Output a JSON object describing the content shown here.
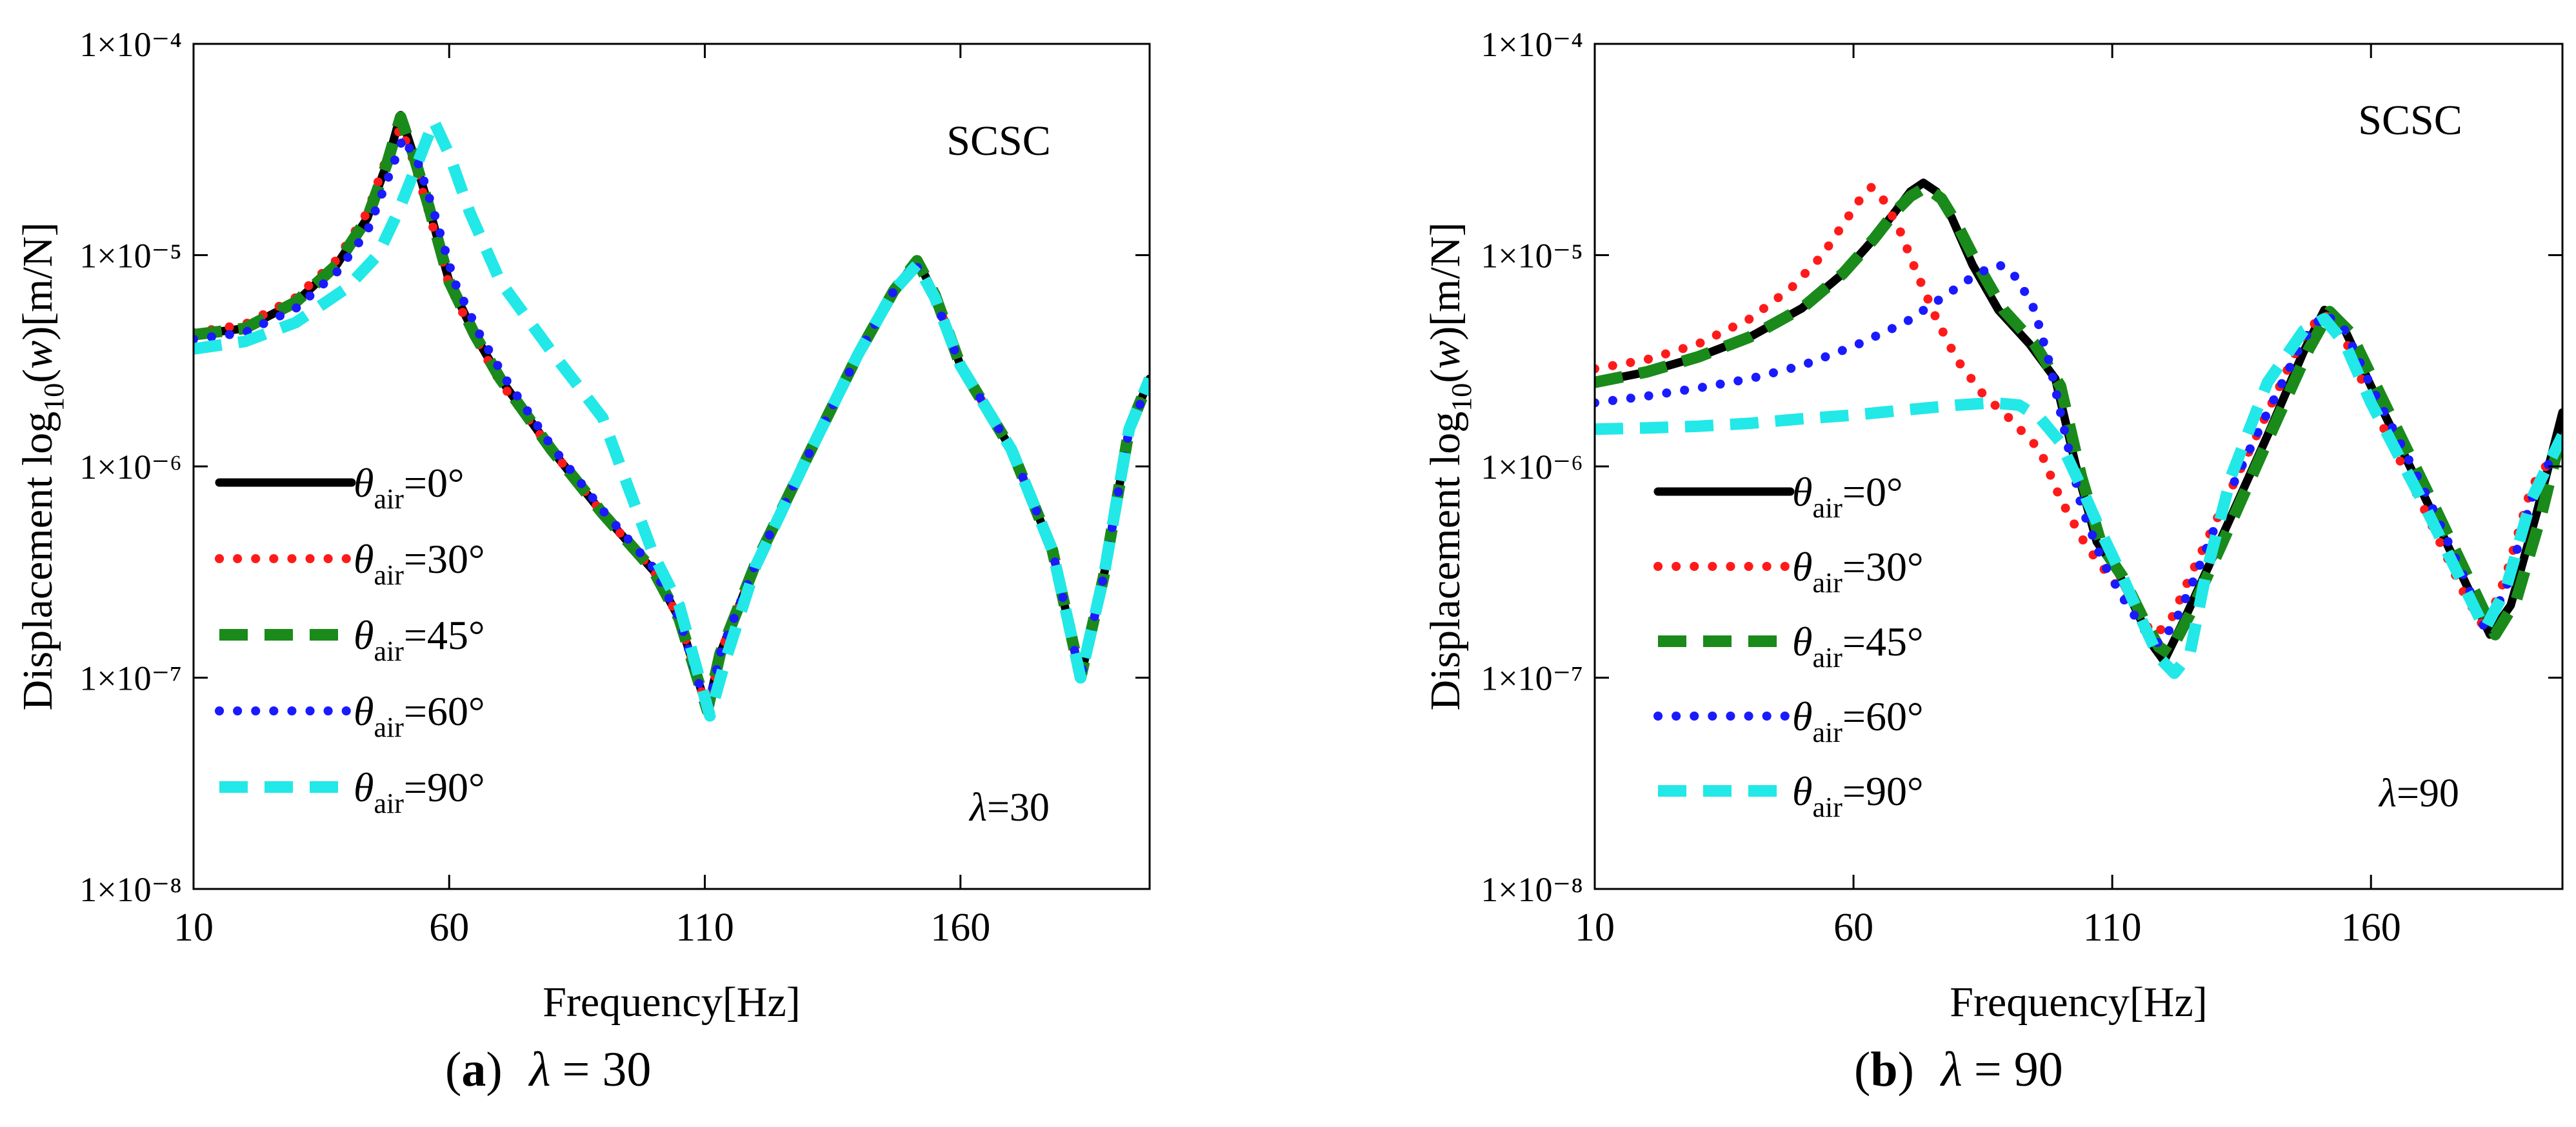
{
  "chart_data": [
    {
      "type": "line",
      "panel_label": "(a)",
      "caption_label": "a",
      "caption_symbol": "λ",
      "caption_value": "= 30",
      "title": "",
      "xlabel": "Frequency[Hz]",
      "ylabel_prefix": "Displacement log",
      "ylabel_sub": "10",
      "ylabel_var": "w",
      "ylabel_unit": "[m/N]",
      "xlim": [
        10,
        197
      ],
      "x_ticks": [
        10,
        60,
        110,
        160
      ],
      "y_scale": "log",
      "ylim": [
        1e-08,
        0.0001
      ],
      "y_ticks": [
        {
          "value": 0.0001,
          "label": "1×10⁻⁴"
        },
        {
          "value": 1e-05,
          "label": "1×10⁻⁵"
        },
        {
          "value": 1e-06,
          "label": "1×10⁻⁶"
        },
        {
          "value": 1e-07,
          "label": "1×10⁻⁷"
        },
        {
          "value": 1e-08,
          "label": "1×10⁻⁸"
        }
      ],
      "annotation_top": "SCSC",
      "annotation_symbol": "λ",
      "annotation_value": "=30",
      "legend_position": "left-bottom",
      "series": [
        {
          "name": "θair=0°",
          "symbol": "θ",
          "sub": "air",
          "value": "=0°",
          "color": "#000000",
          "style": "solid",
          "x": [
            10,
            20,
            30,
            38,
            44,
            48,
            50.5,
            53,
            56,
            60,
            65,
            70,
            80,
            90,
            100,
            105,
            108,
            110.5,
            113,
            120,
            130,
            140,
            147,
            151.5,
            155,
            160,
            170,
            178,
            183.5,
            188,
            193,
            197
          ],
          "y": [
            4.2e-06,
            4.5e-06,
            6e-06,
            9e-06,
            1.5e-05,
            2.8e-05,
            4.6e-05,
            3e-05,
            1.7e-05,
            7.5e-06,
            4.2e-06,
            2.6e-06,
            1.2e-06,
            6e-07,
            3.2e-07,
            1.9e-07,
            1.1e-07,
            7e-08,
            1.3e-07,
            3.5e-07,
            1.1e-06,
            3.4e-06,
            6.8e-06,
            9.5e-06,
            6.5e-06,
            3e-06,
            1.2e-06,
            4e-07,
            1e-07,
            3e-07,
            1.5e-06,
            2.6e-06
          ]
        },
        {
          "name": "θair=30°",
          "symbol": "θ",
          "sub": "air",
          "value": "=30°",
          "color": "#ff1a1a",
          "style": "dot",
          "x": [
            10,
            20,
            30,
            38,
            44,
            48,
            50.5,
            53,
            56,
            60,
            65,
            70,
            80,
            90,
            100,
            105,
            108,
            110.5,
            113,
            120,
            130,
            140,
            147,
            151.5,
            155,
            160,
            170,
            178,
            183.5,
            188,
            193,
            197
          ],
          "y": [
            4.3e-06,
            4.7e-06,
            6.3e-06,
            9.5e-06,
            1.6e-05,
            3e-05,
            4e-05,
            2.8e-05,
            1.6e-05,
            7.2e-06,
            4.1e-06,
            2.5e-06,
            1.2e-06,
            6e-07,
            3.2e-07,
            1.9e-07,
            1.1e-07,
            7e-08,
            1.3e-07,
            3.5e-07,
            1.1e-06,
            3.4e-06,
            6.8e-06,
            9.3e-06,
            6.4e-06,
            3e-06,
            1.2e-06,
            4e-07,
            1e-07,
            3e-07,
            1.5e-06,
            2.6e-06
          ]
        },
        {
          "name": "θair=45°",
          "symbol": "θ",
          "sub": "air",
          "value": "=45°",
          "color": "#1a8a1a",
          "style": "dash",
          "x": [
            10,
            20,
            30,
            38,
            44,
            48,
            50.5,
            53,
            56,
            60,
            65,
            70,
            80,
            90,
            100,
            105,
            108,
            110.5,
            113,
            120,
            130,
            140,
            147,
            151.5,
            155,
            160,
            170,
            178,
            183.5,
            188,
            193,
            197
          ],
          "y": [
            4.2e-06,
            4.5e-06,
            6e-06,
            9e-06,
            1.5e-05,
            2.8e-05,
            4.5e-05,
            3e-05,
            1.7e-05,
            7.5e-06,
            4.2e-06,
            2.6e-06,
            1.2e-06,
            6e-07,
            3.2e-07,
            1.9e-07,
            1.1e-07,
            7e-08,
            1.3e-07,
            3.5e-07,
            1.1e-06,
            3.4e-06,
            6.8e-06,
            9.4e-06,
            6.5e-06,
            3e-06,
            1.2e-06,
            4e-07,
            1e-07,
            3e-07,
            1.5e-06,
            2.6e-06
          ]
        },
        {
          "name": "θair=60°",
          "symbol": "θ",
          "sub": "air",
          "value": "=60°",
          "color": "#1a1aff",
          "style": "dot",
          "x": [
            10,
            20,
            30,
            38,
            44,
            48,
            51,
            54,
            57,
            61,
            66,
            71,
            80,
            90,
            100,
            105,
            108,
            110.5,
            113,
            120,
            130,
            140,
            147,
            151.5,
            155,
            160,
            170,
            178,
            183.5,
            188,
            193,
            197
          ],
          "y": [
            4e-06,
            4.3e-06,
            5.6e-06,
            8.3e-06,
            1.3e-05,
            2.3e-05,
            3.6e-05,
            2.7e-05,
            1.6e-05,
            7.5e-06,
            4.2e-06,
            2.6e-06,
            1.25e-06,
            6.2e-07,
            3.3e-07,
            1.9e-07,
            1.1e-07,
            6.9e-08,
            1.3e-07,
            3.5e-07,
            1.1e-06,
            3.4e-06,
            6.8e-06,
            8.8e-06,
            6.2e-06,
            3e-06,
            1.2e-06,
            4e-07,
            1e-07,
            3e-07,
            1.5e-06,
            2.5e-06
          ]
        },
        {
          "name": "θair=90°",
          "symbol": "θ",
          "sub": "air",
          "value": "=90°",
          "color": "#22e8e8",
          "style": "dash",
          "x": [
            10,
            20,
            30,
            40,
            46,
            50,
            54,
            57,
            60,
            64,
            70,
            80,
            90,
            95,
            100,
            105,
            108,
            111,
            114,
            120,
            130,
            140,
            147,
            151.5,
            155,
            160,
            170,
            178,
            183.5,
            188,
            193,
            197
          ],
          "y": [
            3.6e-06,
            3.9e-06,
            4.8e-06,
            7e-06,
            1e-05,
            1.6e-05,
            2.8e-05,
            4.3e-05,
            3e-05,
            1.6e-05,
            7.5e-06,
            3.5e-06,
            1.7e-06,
            8e-07,
            3.8e-07,
            2.2e-07,
            1.2e-07,
            6.6e-08,
            1.2e-07,
            3.4e-07,
            1.1e-06,
            3.4e-06,
            6.8e-06,
            9e-06,
            6.3e-06,
            3e-06,
            1.2e-06,
            4e-07,
            1e-07,
            3e-07,
            1.5e-06,
            2.6e-06
          ]
        }
      ]
    },
    {
      "type": "line",
      "panel_label": "(b)",
      "caption_label": "b",
      "caption_symbol": "λ",
      "caption_value": "= 90",
      "title": "",
      "xlabel": "Frequency[Hz]",
      "ylabel_prefix": "Displacement log",
      "ylabel_sub": "10",
      "ylabel_var": "w",
      "ylabel_unit": "[m/N]",
      "xlim": [
        10,
        197
      ],
      "x_ticks": [
        10,
        60,
        110,
        160
      ],
      "y_scale": "log",
      "ylim": [
        1e-08,
        0.0001
      ],
      "y_ticks": [
        {
          "value": 0.0001,
          "label": "1×10⁻⁴"
        },
        {
          "value": 1e-05,
          "label": "1×10⁻⁵"
        },
        {
          "value": 1e-06,
          "label": "1×10⁻⁶"
        },
        {
          "value": 1e-07,
          "label": "1×10⁻⁷"
        },
        {
          "value": 1e-08,
          "label": "1×10⁻⁸"
        }
      ],
      "annotation_top": "SCSC",
      "annotation_symbol": "λ",
      "annotation_value": "=90",
      "legend_position": "left-bottom",
      "series": [
        {
          "name": "θair=0°",
          "symbol": "θ",
          "sub": "air",
          "value": "=0°",
          "color": "#000000",
          "style": "solid",
          "x": [
            10,
            20,
            30,
            40,
            50,
            58,
            64,
            68,
            71,
            73.5,
            76,
            79,
            83,
            88,
            94,
            99,
            103,
            107,
            111,
            115,
            118,
            120,
            124,
            130,
            140,
            147,
            151,
            155,
            160,
            170,
            178,
            183,
            187,
            192,
            197
          ],
          "y": [
            2.5e-06,
            2.8e-06,
            3.3e-06,
            4.1e-06,
            5.6e-06,
            8.2e-06,
            1.2e-05,
            1.6e-05,
            2e-05,
            2.2e-05,
            2e-05,
            1.5e-05,
            9e-06,
            5.5e-06,
            3.8e-06,
            2.6e-06,
            1e-06,
            4.4e-07,
            3.2e-07,
            2e-07,
            1.4e-07,
            1.2e-07,
            1.9e-07,
            4e-07,
            1.4e-06,
            3.5e-06,
            5.5e-06,
            4.4e-06,
            2.4e-06,
            7.5e-07,
            2.9e-07,
            1.6e-07,
            2.2e-07,
            6e-07,
            1.8e-06
          ]
        },
        {
          "name": "θair=30°",
          "symbol": "θ",
          "sub": "air",
          "value": "=30°",
          "color": "#ff1a1a",
          "style": "dot",
          "x": [
            10,
            20,
            30,
            40,
            48,
            54,
            58,
            61,
            63.5,
            66,
            69,
            72,
            76,
            80,
            85,
            90,
            96,
            100,
            105,
            110,
            115,
            118,
            121,
            125,
            130,
            140,
            147,
            151,
            155,
            160,
            170,
            178,
            182,
            186,
            191,
            197
          ],
          "y": [
            2.9e-06,
            3.2e-06,
            3.8e-06,
            5e-06,
            7e-06,
            1e-05,
            1.4e-05,
            1.8e-05,
            2.1e-05,
            1.8e-05,
            1.3e-05,
            8.5e-06,
            5e-06,
            3.2e-06,
            2.2e-06,
            1.7e-06,
            1.2e-06,
            7e-07,
            4.2e-07,
            2.9e-07,
            2e-07,
            1.6e-07,
            1.8e-07,
            3e-07,
            5.5e-07,
            1.8e-06,
            4.2e-06,
            5.3e-06,
            4e-06,
            2e-06,
            6.5e-07,
            2.5e-07,
            1.7e-07,
            3e-07,
            8e-07,
            1.3e-06
          ]
        },
        {
          "name": "θair=45°",
          "symbol": "θ",
          "sub": "air",
          "value": "=45°",
          "color": "#1a8a1a",
          "style": "dash",
          "x": [
            10,
            20,
            30,
            40,
            50,
            58,
            64,
            68,
            71,
            74,
            77,
            80,
            84,
            89,
            95,
            100,
            104,
            108,
            112,
            116,
            119,
            121,
            125,
            131,
            141,
            148,
            152,
            156,
            161,
            171,
            179,
            184,
            188,
            193,
            197
          ],
          "y": [
            2.5e-06,
            2.8e-06,
            3.3e-06,
            4.1e-06,
            5.6e-06,
            8.2e-06,
            1.2e-05,
            1.6e-05,
            1.9e-05,
            2.1e-05,
            1.85e-05,
            1.4e-05,
            9e-06,
            5.5e-06,
            3.8e-06,
            2.4e-06,
            9e-07,
            4.2e-07,
            3e-07,
            1.9e-07,
            1.4e-07,
            1.3e-07,
            2e-07,
            4.2e-07,
            1.5e-06,
            3.6e-06,
            5.4e-06,
            4.3e-06,
            2.4e-06,
            7.5e-07,
            2.9e-07,
            1.6e-07,
            2.3e-07,
            6e-07,
            1.5e-06
          ]
        },
        {
          "name": "θair=60°",
          "symbol": "θ",
          "sub": "air",
          "value": "=60°",
          "color": "#1a1aff",
          "style": "dot",
          "x": [
            10,
            20,
            30,
            40,
            50,
            60,
            70,
            78,
            84,
            88,
            90,
            92,
            95,
            98,
            101,
            104,
            108,
            112,
            116,
            119,
            122,
            126,
            132,
            140,
            147,
            151,
            155,
            160,
            170,
            178,
            182,
            186,
            191,
            197
          ],
          "y": [
            2e-06,
            2.15e-06,
            2.35e-06,
            2.6e-06,
            3e-06,
            3.7e-06,
            4.8e-06,
            6.5e-06,
            8.2e-06,
            9e-06,
            8.6e-06,
            7.5e-06,
            5.5e-06,
            3e-06,
            1.4e-06,
            6.5e-07,
            3.6e-07,
            2.4e-07,
            1.7e-07,
            1.45e-07,
            1.8e-07,
            3e-07,
            7e-07,
            1.8e-06,
            4e-06,
            5.3e-06,
            4.4e-06,
            2.4e-06,
            8e-07,
            3e-07,
            1.7e-07,
            2.6e-07,
            7e-07,
            1.4e-06
          ]
        },
        {
          "name": "θair=90°",
          "symbol": "θ",
          "sub": "air",
          "value": "=90°",
          "color": "#22e8e8",
          "style": "dash",
          "x": [
            10,
            20,
            30,
            40,
            50,
            60,
            70,
            80,
            87,
            92,
            96,
            100,
            104,
            108,
            112,
            116,
            119,
            122,
            125,
            128,
            133,
            140,
            147,
            151,
            155,
            160,
            170,
            178,
            182,
            186,
            191,
            197
          ],
          "y": [
            1.5e-06,
            1.52e-06,
            1.55e-06,
            1.6e-06,
            1.68e-06,
            1.75e-06,
            1.85e-06,
            1.95e-06,
            2e-06,
            1.95e-06,
            1.7e-06,
            1.3e-06,
            8e-07,
            4.8e-07,
            3e-07,
            1.8e-07,
            1.25e-07,
            1.05e-07,
            1.3e-07,
            3e-07,
            9e-07,
            2.5e-06,
            4.4e-06,
            5e-06,
            3.8e-06,
            2e-06,
            6.8e-07,
            2.7e-07,
            1.7e-07,
            2.6e-07,
            7e-07,
            1.4e-06
          ]
        }
      ]
    }
  ]
}
